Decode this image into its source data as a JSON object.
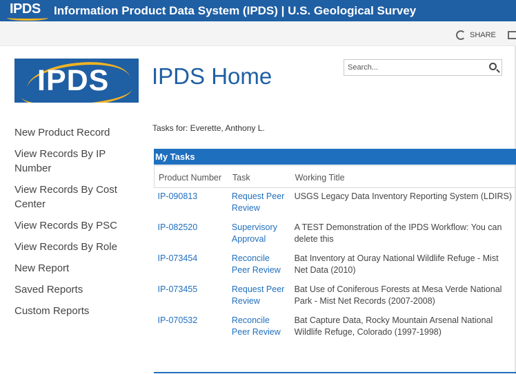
{
  "suitebar": {
    "logo_text": "IPDS",
    "title": "Information Product Data System (IPDS)  |  U.S. Geological Survey",
    "bg_color": "#1f5fa4",
    "accent_color": "#f0b323"
  },
  "ribbon": {
    "share_label": "SHARE",
    "share_icon": "share-icon",
    "focus_icon": "focus-on-content-icon"
  },
  "logo": {
    "text": "IPDS"
  },
  "page": {
    "title": "IPDS Home"
  },
  "search": {
    "placeholder": "Search...",
    "icon": "search-icon"
  },
  "leftnav": {
    "items": [
      {
        "label": "New Product Record"
      },
      {
        "label": "View Records By IP Number"
      },
      {
        "label": "View Records By Cost Center"
      },
      {
        "label": "View Records By PSC"
      },
      {
        "label": "View Records By Role"
      },
      {
        "label": "New Report"
      },
      {
        "label": "Saved Reports"
      },
      {
        "label": "Custom Reports"
      }
    ]
  },
  "tasks_for": "Tasks for: Everette, Anthony L.",
  "my_tasks": {
    "heading": "My Tasks",
    "columns": [
      "Product Number",
      "Task",
      "Working Title"
    ],
    "rows": [
      {
        "number": "IP-090813",
        "task": "Request Peer Review",
        "title": "USGS Legacy Data Inventory Reporting System (LDIRS)",
        "title2": ""
      },
      {
        "number": "IP-082520",
        "task": "Supervisory Approval",
        "title": "A TEST Demonstration of the IPDS Workflow: You can",
        "title2": "delete this"
      },
      {
        "number": "IP-073454",
        "task": "Reconcile Peer Review",
        "title": "Bat Inventory at Ouray National Wildlife Refuge - Mist",
        "title2": "Net Data (2010)"
      },
      {
        "number": "IP-073455",
        "task": "Request Peer Review",
        "title": "Bat Use of Coniferous Forests at Mesa Verde National",
        "title2": "Park - Mist Net Records (2007-2008)"
      },
      {
        "number": "IP-070532",
        "task": "Reconcile Peer Review",
        "title": "Bat Capture Data, Rocky Mountain Arsenal National",
        "title2": "Wildlife Refuge, Colorado (1997-1998)"
      }
    ]
  }
}
